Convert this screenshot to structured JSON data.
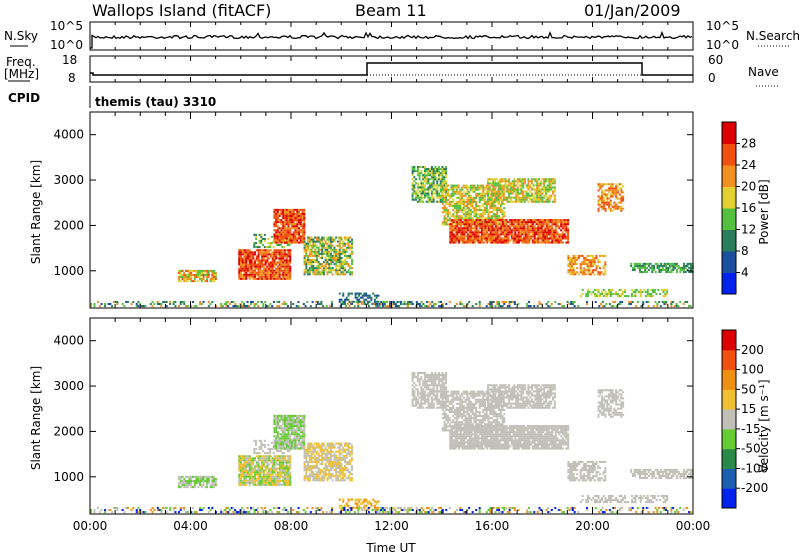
{
  "header": {
    "station": "Wallops Island (fitACF)",
    "beam": "Beam 11",
    "date": "01/Jan/2009"
  },
  "panels": {
    "nsky": {
      "left_label": "N.Sky",
      "left_ticks": [
        "10^5",
        "10^0"
      ],
      "right_ticks": [
        "10^5",
        "10^0"
      ],
      "right_label": "N.Search"
    },
    "freq": {
      "left_label_1": "Freq.",
      "left_label_2": "[MHz]",
      "left_ticks": [
        "18",
        "8"
      ],
      "right_ticks": [
        "60",
        "0"
      ],
      "right_label": "Nave"
    },
    "cpid": {
      "label": "CPID",
      "program": "themis (tau) 3310"
    }
  },
  "chart_data": [
    {
      "type": "heatmap",
      "name": "power",
      "ylabel": "Slant Range [km]",
      "xlabel": "",
      "xlim": [
        "00:00",
        "00:00"
      ],
      "ylim": [
        180,
        4500
      ],
      "yticks": [
        "1000",
        "2000",
        "3000",
        "4000"
      ],
      "xticks": [
        "00:00",
        "04:00",
        "08:00",
        "12:00",
        "16:00",
        "20:00",
        "00:00"
      ],
      "colorbar": {
        "label": "Power [dB]",
        "ticks": [
          "4",
          "8",
          "12",
          "16",
          "20",
          "24",
          "28"
        ],
        "colors": [
          "#0022ee",
          "#1a4f9e",
          "#2a7d5a",
          "#55c040",
          "#e0d030",
          "#f09020",
          "#f05010",
          "#dd0000"
        ]
      }
    },
    {
      "type": "heatmap",
      "name": "velocity",
      "ylabel": "Slant Range [km]",
      "xlabel": "Time UT",
      "ylim": [
        180,
        4500
      ],
      "yticks": [
        "1000",
        "2000",
        "3000",
        "4000"
      ],
      "xticks": [
        "00:00",
        "04:00",
        "08:00",
        "12:00",
        "16:00",
        "20:00",
        "00:00"
      ],
      "colorbar": {
        "label": "Velocity [m s⁻¹]",
        "ticks": [
          "200",
          "100",
          "50",
          "15",
          "-15",
          "-50",
          "-100",
          "-200"
        ],
        "colors": [
          "#0022ee",
          "#1a5fb0",
          "#2a8a4a",
          "#66cc33",
          "#c0c0b8",
          "#f0c030",
          "#f09010",
          "#f05010",
          "#dd0000"
        ]
      }
    }
  ],
  "colors": {
    "ground_scatter": "#c0c0b8",
    "axis": "#000000"
  }
}
